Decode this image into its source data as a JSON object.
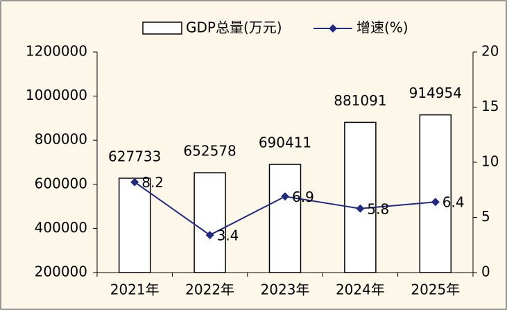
{
  "chart_data": {
    "type": "bar",
    "categories": [
      "2021年",
      "2022年",
      "2023年",
      "2024年",
      "2025年"
    ],
    "series": [
      {
        "name": "GDP总量(万元)",
        "type": "bar",
        "color": "#ffffff",
        "values": [
          627733,
          652578,
          690411,
          881091,
          914954
        ]
      },
      {
        "name": "增速(%)",
        "type": "line",
        "axis": "y2",
        "color": "#1f2a80",
        "values": [
          8.2,
          3.4,
          6.9,
          5.8,
          6.4
        ]
      }
    ],
    "ylim": [
      200000,
      1200000
    ],
    "yticks": [
      200000,
      400000,
      600000,
      800000,
      1000000,
      1200000
    ],
    "y2lim": [
      0,
      20
    ],
    "y2ticks": [
      0,
      5,
      10,
      15,
      20
    ],
    "legend": "top"
  }
}
